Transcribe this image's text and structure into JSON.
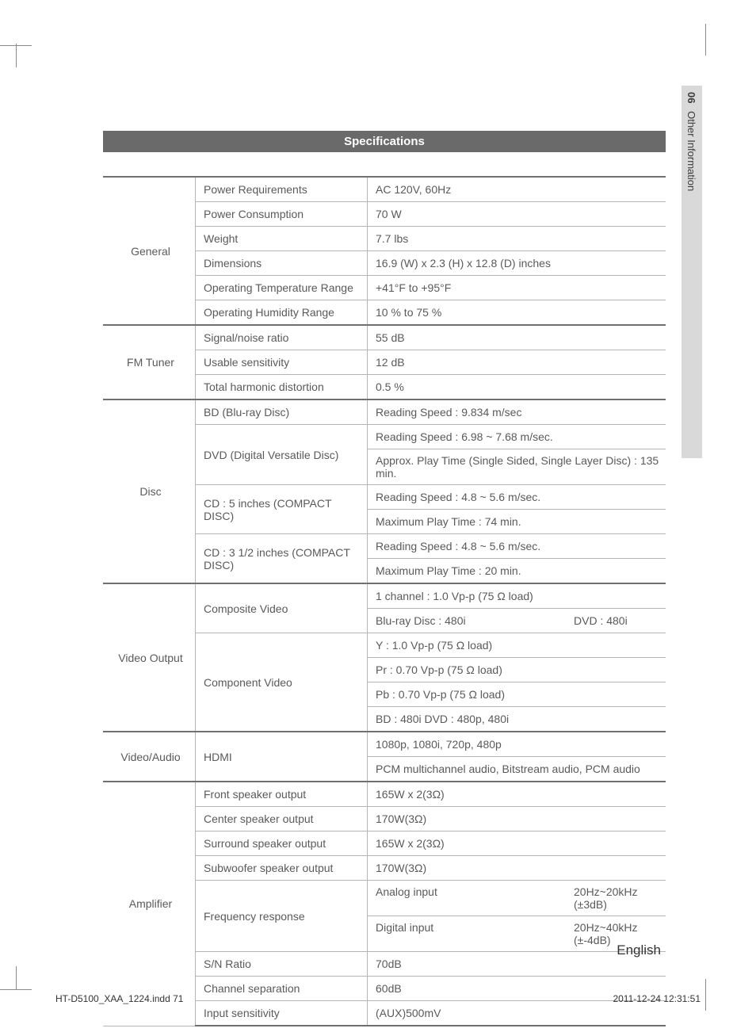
{
  "side_tab": {
    "num": "06",
    "label": "Other Information"
  },
  "header": "Specifications",
  "footer": {
    "lang": "English",
    "file": "HT-D5100_XAA_1224.indd   71",
    "date": "2011-12-24    12:31:51"
  },
  "colors": {
    "header_bg": "#6a6a6a",
    "header_fg": "#ffffff",
    "border": "#b5b5b5",
    "cat_border": "#707070",
    "tab_bg": "#d9d9d9",
    "text": "#5a5a5a"
  },
  "table": {
    "categories": [
      {
        "name": "General",
        "rows": [
          {
            "label": "Power Requirements",
            "value": "AC 120V, 60Hz"
          },
          {
            "label": "Power Consumption",
            "value": "70 W"
          },
          {
            "label": "Weight",
            "value": "7.7 lbs"
          },
          {
            "label": "Dimensions",
            "value": "16.9 (W) x 2.3 (H) x 12.8 (D) inches"
          },
          {
            "label": "Operating Temperature Range",
            "value": "+41°F to +95°F"
          },
          {
            "label": "Operating Humidity Range",
            "value": "10 % to 75 %"
          }
        ]
      },
      {
        "name": "FM Tuner",
        "rows": [
          {
            "label": "Signal/noise ratio",
            "value": "55 dB"
          },
          {
            "label": "Usable sensitivity",
            "value": "12 dB"
          },
          {
            "label": "Total harmonic distortion",
            "value": "0.5 %"
          }
        ]
      },
      {
        "name": "Disc",
        "rows": [
          {
            "label": "BD (Blu-ray Disc)",
            "value": "Reading Speed : 9.834 m/sec"
          },
          {
            "label": "DVD (Digital Versatile Disc)",
            "span": 2,
            "values": [
              "Reading Speed : 6.98 ~ 7.68 m/sec.",
              "Approx. Play Time (Single Sided, Single Layer Disc) : 135 min."
            ]
          },
          {
            "label": "CD : 5 inches (COMPACT DISC)",
            "span": 2,
            "values": [
              "Reading Speed : 4.8 ~ 5.6 m/sec.",
              "Maximum Play Time : 74 min."
            ]
          },
          {
            "label": "CD : 3 1/2 inches (COMPACT DISC)",
            "span": 2,
            "values": [
              "Reading Speed : 4.8 ~ 5.6 m/sec.",
              "Maximum Play Time : 20 min."
            ]
          }
        ]
      },
      {
        "name": "Video Output",
        "rows": [
          {
            "label": "Composite Video",
            "span": 2,
            "values": [
              "1 channel : 1.0 Vp-p (75 Ω load)",
              {
                "split": [
                  "Blu-ray Disc : 480i",
                  "DVD : 480i"
                ]
              }
            ]
          },
          {
            "label": "Component Video",
            "span": 4,
            "values": [
              "Y : 1.0 Vp-p (75 Ω load)",
              "Pr : 0.70 Vp-p (75 Ω load)",
              "Pb : 0.70 Vp-p (75 Ω load)",
              "BD : 480i    DVD : 480p, 480i"
            ]
          }
        ]
      },
      {
        "name": "Video/Audio",
        "rows": [
          {
            "label": "HDMI",
            "span": 2,
            "values": [
              "1080p, 1080i, 720p, 480p",
              "PCM multichannel audio, Bitstream audio, PCM audio"
            ]
          }
        ]
      },
      {
        "name": "Amplifier",
        "rows": [
          {
            "label": "Front speaker output",
            "value": "165W x 2(3Ω)"
          },
          {
            "label": "Center speaker output",
            "value": "170W(3Ω)"
          },
          {
            "label": "Surround speaker output",
            "value": "165W x 2(3Ω)"
          },
          {
            "label": "Subwoofer speaker output",
            "value": "170W(3Ω)"
          },
          {
            "label": "Frequency response",
            "span": 2,
            "values": [
              {
                "split": [
                  "Analog input",
                  "20Hz~20kHz (±3dB)"
                ]
              },
              {
                "split": [
                  "Digital input",
                  "20Hz~40kHz (±-4dB)"
                ]
              }
            ]
          },
          {
            "label": "S/N Ratio",
            "value": "70dB"
          },
          {
            "label": "Channel separation",
            "value": "60dB"
          },
          {
            "label": "Input sensitivity",
            "value": "(AUX)500mV"
          }
        ]
      }
    ]
  }
}
